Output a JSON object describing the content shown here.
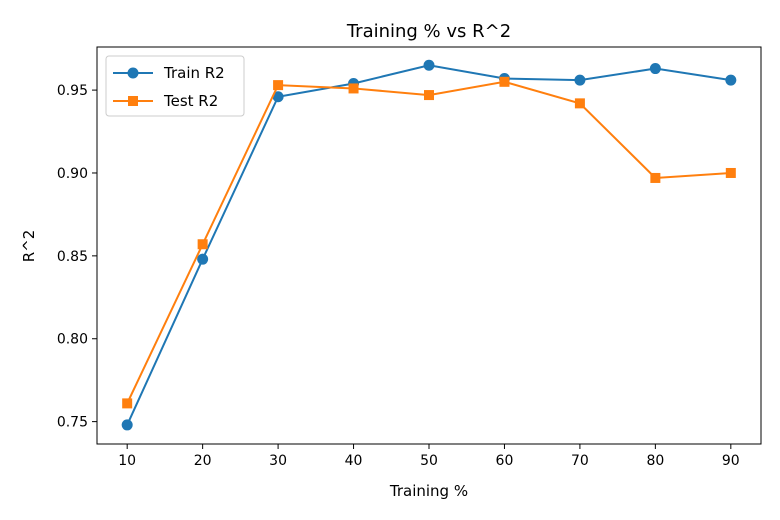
{
  "chart_data": {
    "type": "line",
    "title": "Training % vs R^2",
    "xlabel": "Training %",
    "ylabel": "R^2",
    "x": [
      10,
      20,
      30,
      40,
      50,
      60,
      70,
      80,
      90
    ],
    "xlim": [
      6,
      94
    ],
    "ylim": [
      0.7365,
      0.976
    ],
    "xticks": [
      10,
      20,
      30,
      40,
      50,
      60,
      70,
      80,
      90
    ],
    "xtick_labels": [
      "10",
      "20",
      "30",
      "40",
      "50",
      "60",
      "70",
      "80",
      "90"
    ],
    "yticks": [
      0.75,
      0.8,
      0.85,
      0.9,
      0.95
    ],
    "ytick_labels": [
      "0.75",
      "0.80",
      "0.85",
      "0.90",
      "0.95"
    ],
    "grid": false,
    "legend_position": "top-left",
    "series": [
      {
        "name": "Train R2",
        "marker": "circle",
        "color": "#1f77b4",
        "values": [
          0.748,
          0.848,
          0.946,
          0.954,
          0.965,
          0.957,
          0.956,
          0.963,
          0.956
        ]
      },
      {
        "name": "Test R2",
        "marker": "square",
        "color": "#ff7f0e",
        "values": [
          0.761,
          0.857,
          0.953,
          0.951,
          0.947,
          0.955,
          0.942,
          0.897,
          0.9
        ]
      }
    ]
  }
}
